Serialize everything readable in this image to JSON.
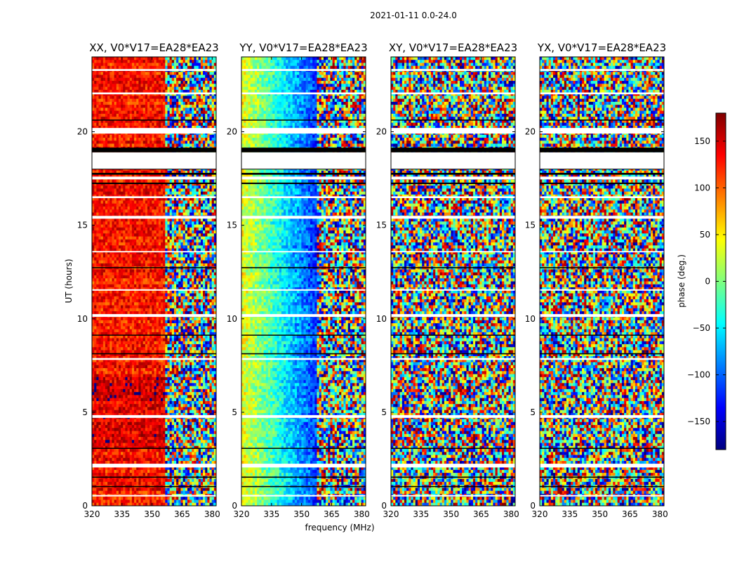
{
  "figure": {
    "suptitle": "2021-01-11 0.0-24.0",
    "xlabel": "frequency (MHz)",
    "ylabel": "UT (hours)"
  },
  "colorbar": {
    "label": "phase (deg.)",
    "range": [
      -180,
      180
    ],
    "ticks": [
      150,
      100,
      50,
      0,
      -50,
      -100,
      -150
    ],
    "tick_labels": [
      "150",
      "100",
      "50",
      "0",
      "−50",
      "−100",
      "−150"
    ],
    "colormap": "jet",
    "colors": [
      "#00007f",
      "#0000ff",
      "#007fff",
      "#00ffff",
      "#7fff7f",
      "#ffff00",
      "#ff7f00",
      "#ff0000",
      "#7f0000"
    ]
  },
  "chart_data": [
    {
      "type": "heatmap",
      "title": "XX, V0*V17=EA28*EA23",
      "x_ticks": [
        320,
        335,
        350,
        365,
        380
      ],
      "y_ticks": [
        0,
        5,
        10,
        15,
        20
      ],
      "xlim": [
        320,
        382
      ],
      "ylim": [
        0,
        24
      ],
      "phase_pattern": "coherent red/orange-red phase band at 320-355 MHz, noisy above ~357 MHz"
    },
    {
      "type": "heatmap",
      "title": "YY, V0*V17=EA28*EA23",
      "x_ticks": [
        320,
        335,
        350,
        365,
        380
      ],
      "y_ticks": [
        0,
        5,
        10,
        15,
        20
      ],
      "xlim": [
        320,
        382
      ],
      "ylim": [
        0,
        24
      ],
      "phase_pattern": "phase gradient yellow-green at 320 MHz to blue near 350 MHz, noisy above ~360 MHz"
    },
    {
      "type": "heatmap",
      "title": "XY, V0*V17=EA28*EA23",
      "x_ticks": [
        320,
        335,
        350,
        365,
        380
      ],
      "y_ticks": [
        0,
        5,
        10,
        15,
        20
      ],
      "xlim": [
        320,
        382
      ],
      "ylim": [
        0,
        24
      ],
      "phase_pattern": "random phase noise across band"
    },
    {
      "type": "heatmap",
      "title": "YX, V0*V17=EA28*EA23",
      "x_ticks": [
        320,
        335,
        350,
        365,
        380
      ],
      "y_ticks": [
        0,
        5,
        10,
        15,
        20
      ],
      "xlim": [
        320,
        382
      ],
      "ylim": [
        0,
        24
      ],
      "phase_pattern": "random phase noise across band"
    }
  ],
  "gaps_hours": {
    "blank": [
      [
        18.0,
        18.9
      ],
      [
        17.45,
        17.6
      ],
      [
        19.9,
        20.2
      ],
      [
        15.35,
        15.5
      ],
      [
        10.1,
        10.25
      ],
      [
        7.8,
        7.9
      ],
      [
        4.7,
        4.85
      ],
      [
        2.05,
        2.25
      ],
      [
        0.5,
        0.58
      ],
      [
        16.45,
        16.55
      ],
      [
        22.0,
        22.1
      ],
      [
        23.25,
        23.35
      ],
      [
        13.55,
        13.62
      ],
      [
        11.5,
        11.58
      ]
    ],
    "black": [
      [
        18.9,
        19.15
      ],
      [
        17.7,
        17.8
      ],
      [
        17.2,
        17.28
      ],
      [
        12.7,
        12.76
      ],
      [
        9.1,
        9.15
      ],
      [
        8.1,
        8.16
      ],
      [
        3.05,
        3.1
      ],
      [
        1.5,
        1.56
      ],
      [
        1.0,
        1.06
      ],
      [
        20.6,
        20.65
      ]
    ]
  }
}
